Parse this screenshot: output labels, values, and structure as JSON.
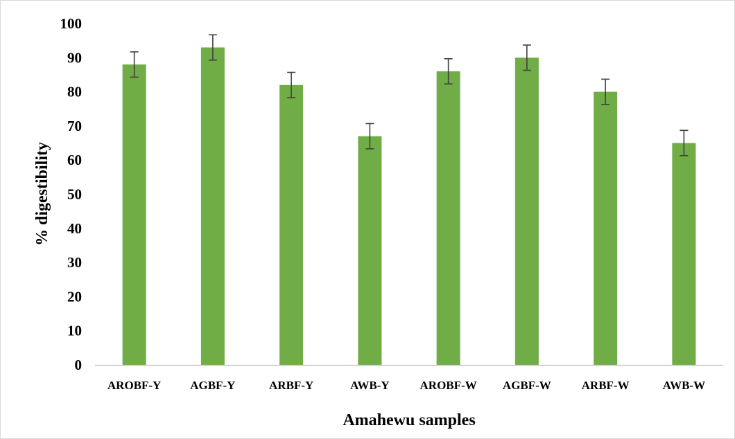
{
  "chart_data": {
    "type": "bar",
    "title": "",
    "xlabel": "Amahewu samples",
    "ylabel": "% digestibility",
    "categories": [
      "AROBF-Y",
      "AGBF-Y",
      "ARBF-Y",
      "AWB-Y",
      "AROBF-W",
      "AGBF-W",
      "ARBF-W",
      "AWB-W"
    ],
    "values": [
      88,
      93,
      82,
      67,
      86,
      90,
      80,
      65
    ],
    "error": [
      3.7,
      3.7,
      3.7,
      3.7,
      3.7,
      3.7,
      3.7,
      3.7
    ],
    "ylim": [
      0,
      100
    ],
    "yticks": [
      "0",
      "10",
      "20",
      "30",
      "40",
      "50",
      "60",
      "70",
      "80",
      "90",
      "100"
    ],
    "grid": false,
    "legend": "none",
    "colors": {
      "bar": "#70AD47",
      "error_bar": "#404040",
      "axis": "#bfbfbf",
      "frame": "#d9d9d9"
    }
  }
}
